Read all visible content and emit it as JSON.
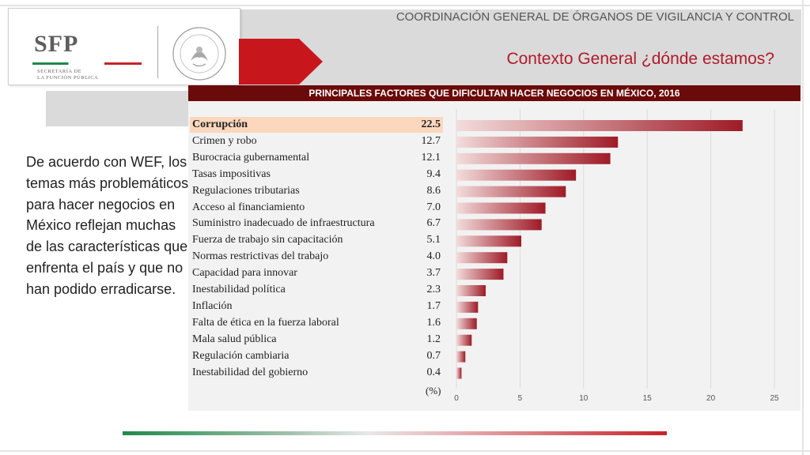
{
  "header": {
    "org": "COORDINACIÓN GENERAL DE ÓRGANOS DE VIGILANCIA Y CONTROL",
    "title": "Contexto General ¿dónde estamos?",
    "logo": {
      "name": "SFP",
      "subtitle_line1": "SECRETARÍA DE",
      "subtitle_line2": "LA FUNCIÓN PÚBLICA",
      "seal_text": "ESTADOS UNIDOS MEXICANOS"
    }
  },
  "description": "De acuerdo con WEF, los temas más problemáticos para hacer negocios en México reflejan muchas de las características que enfrenta el país y que no han podido erradicarse.",
  "chart_data": {
    "type": "bar",
    "orientation": "horizontal",
    "title": "PRINCIPALES FACTORES QUE DIFICULTAN HACER NEGOCIOS EN MÉXICO, 2016",
    "unit": "(%)",
    "categories": [
      "Corrupción",
      "Crimen y robo",
      "Burocracia gubernamental",
      "Tasas impositivas",
      "Regulaciones tributarias",
      "Acceso al financiamiento",
      "Suministro inadecuado de infraestructura",
      "Fuerza de trabajo sin capacitación",
      "Normas restrictivas del trabajo",
      "Capacidad para innovar",
      "Inestabilidad política",
      "Inflación",
      "Falta de ética en la fuerza laboral",
      "Mala salud pública",
      "Regulación cambiaria",
      "Inestabilidad del gobierno"
    ],
    "values": [
      22.5,
      12.7,
      12.1,
      9.4,
      8.6,
      7.0,
      6.7,
      5.1,
      4.0,
      3.7,
      2.3,
      1.7,
      1.6,
      1.2,
      0.7,
      0.4
    ],
    "value_labels": [
      "22.5",
      "12.7",
      "12.1",
      "9.4",
      "8.6",
      "7.0",
      "6.7",
      "5.1",
      "4.0",
      "3.7",
      "2.3",
      "1.7",
      "1.6",
      "1.2",
      "0.7",
      "0.4"
    ],
    "highlighted": "Corrupción",
    "xlim": [
      0,
      25
    ],
    "xticks": [
      0,
      5,
      10,
      15,
      20,
      25
    ],
    "grid": true,
    "colors": {
      "bar_start": "#f3dcdc",
      "bar_end": "#9e1b27",
      "highlight_row": "#fbd7bd",
      "title_bg": "#6b0a0a"
    }
  }
}
